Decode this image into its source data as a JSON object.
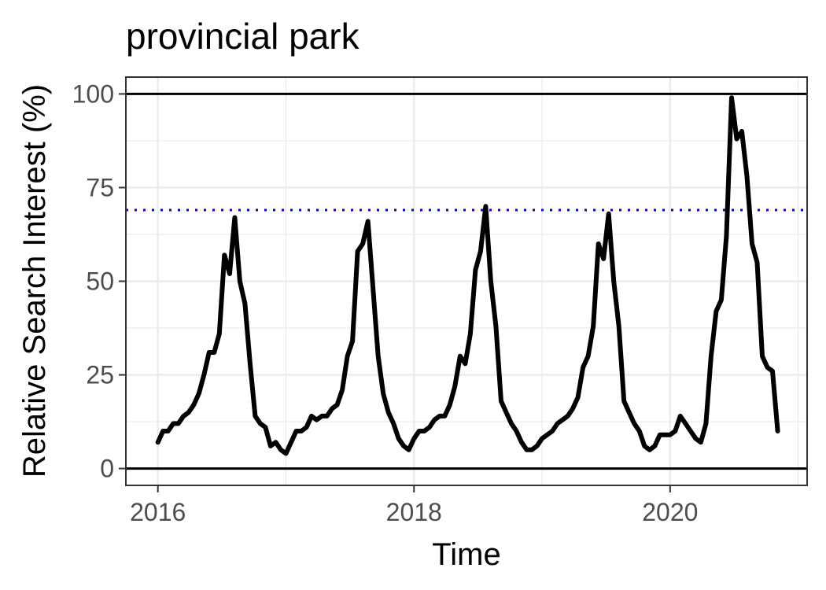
{
  "chart_data": {
    "type": "line",
    "title": "provincial park",
    "xlabel": "Time",
    "ylabel": "Relative Search Interest (%)",
    "xlim": [
      2015.75,
      2021.07
    ],
    "ylim": [
      -4.5,
      104.5
    ],
    "x_ticks": [
      2016,
      2018,
      2020
    ],
    "x_tick_labels": [
      "2016",
      "2018",
      "2020"
    ],
    "y_ticks": [
      0,
      25,
      50,
      75,
      100
    ],
    "y_tick_labels": [
      "0",
      "25",
      "50",
      "75",
      "100"
    ],
    "grid": true,
    "reference_lines": [
      {
        "y": 0,
        "style": "solid",
        "color": "#000000"
      },
      {
        "y": 100,
        "style": "solid",
        "color": "#000000"
      },
      {
        "y": 69,
        "style": "dotted",
        "color": "#0000ff"
      }
    ],
    "series": [
      {
        "color": "#000000",
        "x": [
          2016.0,
          2016.04,
          2016.08,
          2016.12,
          2016.16,
          2016.2,
          2016.24,
          2016.28,
          2016.32,
          2016.36,
          2016.4,
          2016.44,
          2016.48,
          2016.52,
          2016.56,
          2016.6,
          2016.64,
          2016.68,
          2016.72,
          2016.76,
          2016.8,
          2016.84,
          2016.88,
          2016.92,
          2016.96,
          2017.0,
          2017.04,
          2017.08,
          2017.12,
          2017.16,
          2017.2,
          2017.24,
          2017.28,
          2017.32,
          2017.36,
          2017.4,
          2017.44,
          2017.48,
          2017.52,
          2017.56,
          2017.6,
          2017.64,
          2017.68,
          2017.72,
          2017.76,
          2017.8,
          2017.84,
          2017.88,
          2017.92,
          2017.96,
          2018.0,
          2018.04,
          2018.08,
          2018.12,
          2018.16,
          2018.2,
          2018.24,
          2018.28,
          2018.32,
          2018.36,
          2018.4,
          2018.44,
          2018.48,
          2018.52,
          2018.56,
          2018.6,
          2018.64,
          2018.68,
          2018.72,
          2018.76,
          2018.8,
          2018.84,
          2018.88,
          2018.92,
          2018.96,
          2019.0,
          2019.04,
          2019.08,
          2019.12,
          2019.16,
          2019.2,
          2019.24,
          2019.28,
          2019.32,
          2019.36,
          2019.4,
          2019.44,
          2019.48,
          2019.52,
          2019.56,
          2019.6,
          2019.64,
          2019.68,
          2019.72,
          2019.76,
          2019.8,
          2019.84,
          2019.88,
          2019.92,
          2019.96,
          2020.0,
          2020.04,
          2020.08,
          2020.12,
          2020.16,
          2020.2,
          2020.24,
          2020.28,
          2020.32,
          2020.36,
          2020.4,
          2020.44,
          2020.48,
          2020.52,
          2020.56,
          2020.6,
          2020.64,
          2020.68,
          2020.72,
          2020.76,
          2020.8,
          2020.84
        ],
        "values": [
          7,
          10,
          10,
          12,
          12,
          14,
          15,
          17,
          20,
          25,
          31,
          31,
          36,
          57,
          52,
          67,
          50,
          44,
          28,
          14,
          12,
          11,
          6,
          7,
          5,
          4,
          7,
          10,
          10,
          11,
          14,
          13,
          14,
          14,
          16,
          17,
          21,
          30,
          34,
          58,
          60,
          66,
          48,
          30,
          20,
          15,
          12,
          8,
          6,
          5,
          8,
          10,
          10,
          11,
          13,
          14,
          14,
          17,
          22,
          30,
          28,
          36,
          53,
          58,
          70,
          50,
          38,
          18,
          15,
          12,
          10,
          7,
          5,
          5,
          6,
          8,
          9,
          10,
          12,
          13,
          14,
          16,
          19,
          27,
          30,
          38,
          60,
          56,
          68,
          50,
          38,
          18,
          15,
          12,
          10,
          6,
          5,
          6,
          9,
          9,
          9,
          10,
          14,
          12,
          10,
          8,
          7,
          12,
          30,
          42,
          45,
          62,
          99,
          88,
          90,
          78,
          60,
          55,
          30,
          27,
          26,
          10
        ]
      }
    ]
  }
}
